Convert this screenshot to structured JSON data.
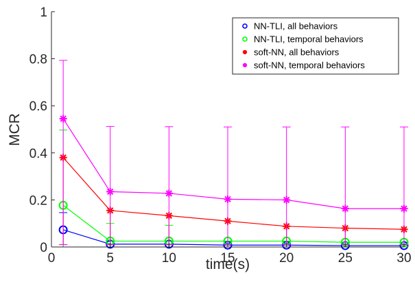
{
  "chart_data": {
    "type": "line",
    "xlabel": "time(s)",
    "ylabel": "MCR",
    "xlim": [
      0,
      30
    ],
    "ylim": [
      0,
      1
    ],
    "x_ticks": [
      "0",
      "5",
      "10",
      "15",
      "20",
      "25",
      "30"
    ],
    "y_ticks": [
      "0",
      "0.2",
      "0.4",
      "0.6",
      "0.8",
      "1"
    ],
    "x": [
      1,
      5,
      10,
      15,
      20,
      25,
      30
    ],
    "legend_position": "top-right",
    "grid": false,
    "series": [
      {
        "name": "NN-TLI, all behaviors",
        "color": "#0000ff",
        "marker": "circle",
        "values": [
          0.073,
          0.012,
          0.012,
          0.008,
          0.008,
          0.006,
          0.006
        ],
        "err_low": [
          0.073,
          0.012,
          0.012,
          0.008,
          0.008,
          0.006,
          0.006
        ],
        "err_high": [
          0.073,
          0.012,
          0.012,
          0.008,
          0.008,
          0.006,
          0.006
        ]
      },
      {
        "name": "NN-TLI, temporal behaviors",
        "color": "#00ff00",
        "marker": "circle",
        "values": [
          0.177,
          0.025,
          0.025,
          0.025,
          0.025,
          0.02,
          0.02
        ],
        "err_low": [
          0.177,
          0.025,
          0.025,
          0.025,
          0.025,
          0.02,
          0.02
        ],
        "err_high": [
          0.32,
          0.075,
          0.067,
          0.0,
          0.0,
          0.0,
          0.0
        ]
      },
      {
        "name": "soft-NN, all behaviors",
        "color": "#ff0000",
        "marker": "star",
        "values": [
          0.38,
          0.155,
          0.133,
          0.11,
          0.088,
          0.08,
          0.075
        ],
        "err_low": [
          0.37,
          0.145,
          0.123,
          0.1,
          0.078,
          0.07,
          0.065
        ],
        "err_high": [
          0.0,
          0.0,
          0.0,
          0.0,
          0.0,
          0.0,
          0.0
        ]
      },
      {
        "name": "soft-NN, temporal behaviors",
        "color": "#ff00ff",
        "marker": "star",
        "values": [
          0.545,
          0.235,
          0.228,
          0.203,
          0.2,
          0.163,
          0.163
        ],
        "err_low": [
          0.535,
          0.225,
          0.218,
          0.193,
          0.19,
          0.153,
          0.153
        ],
        "err_high": [
          0.248,
          0.277,
          0.283,
          0.307,
          0.31,
          0.347,
          0.347
        ]
      }
    ]
  }
}
